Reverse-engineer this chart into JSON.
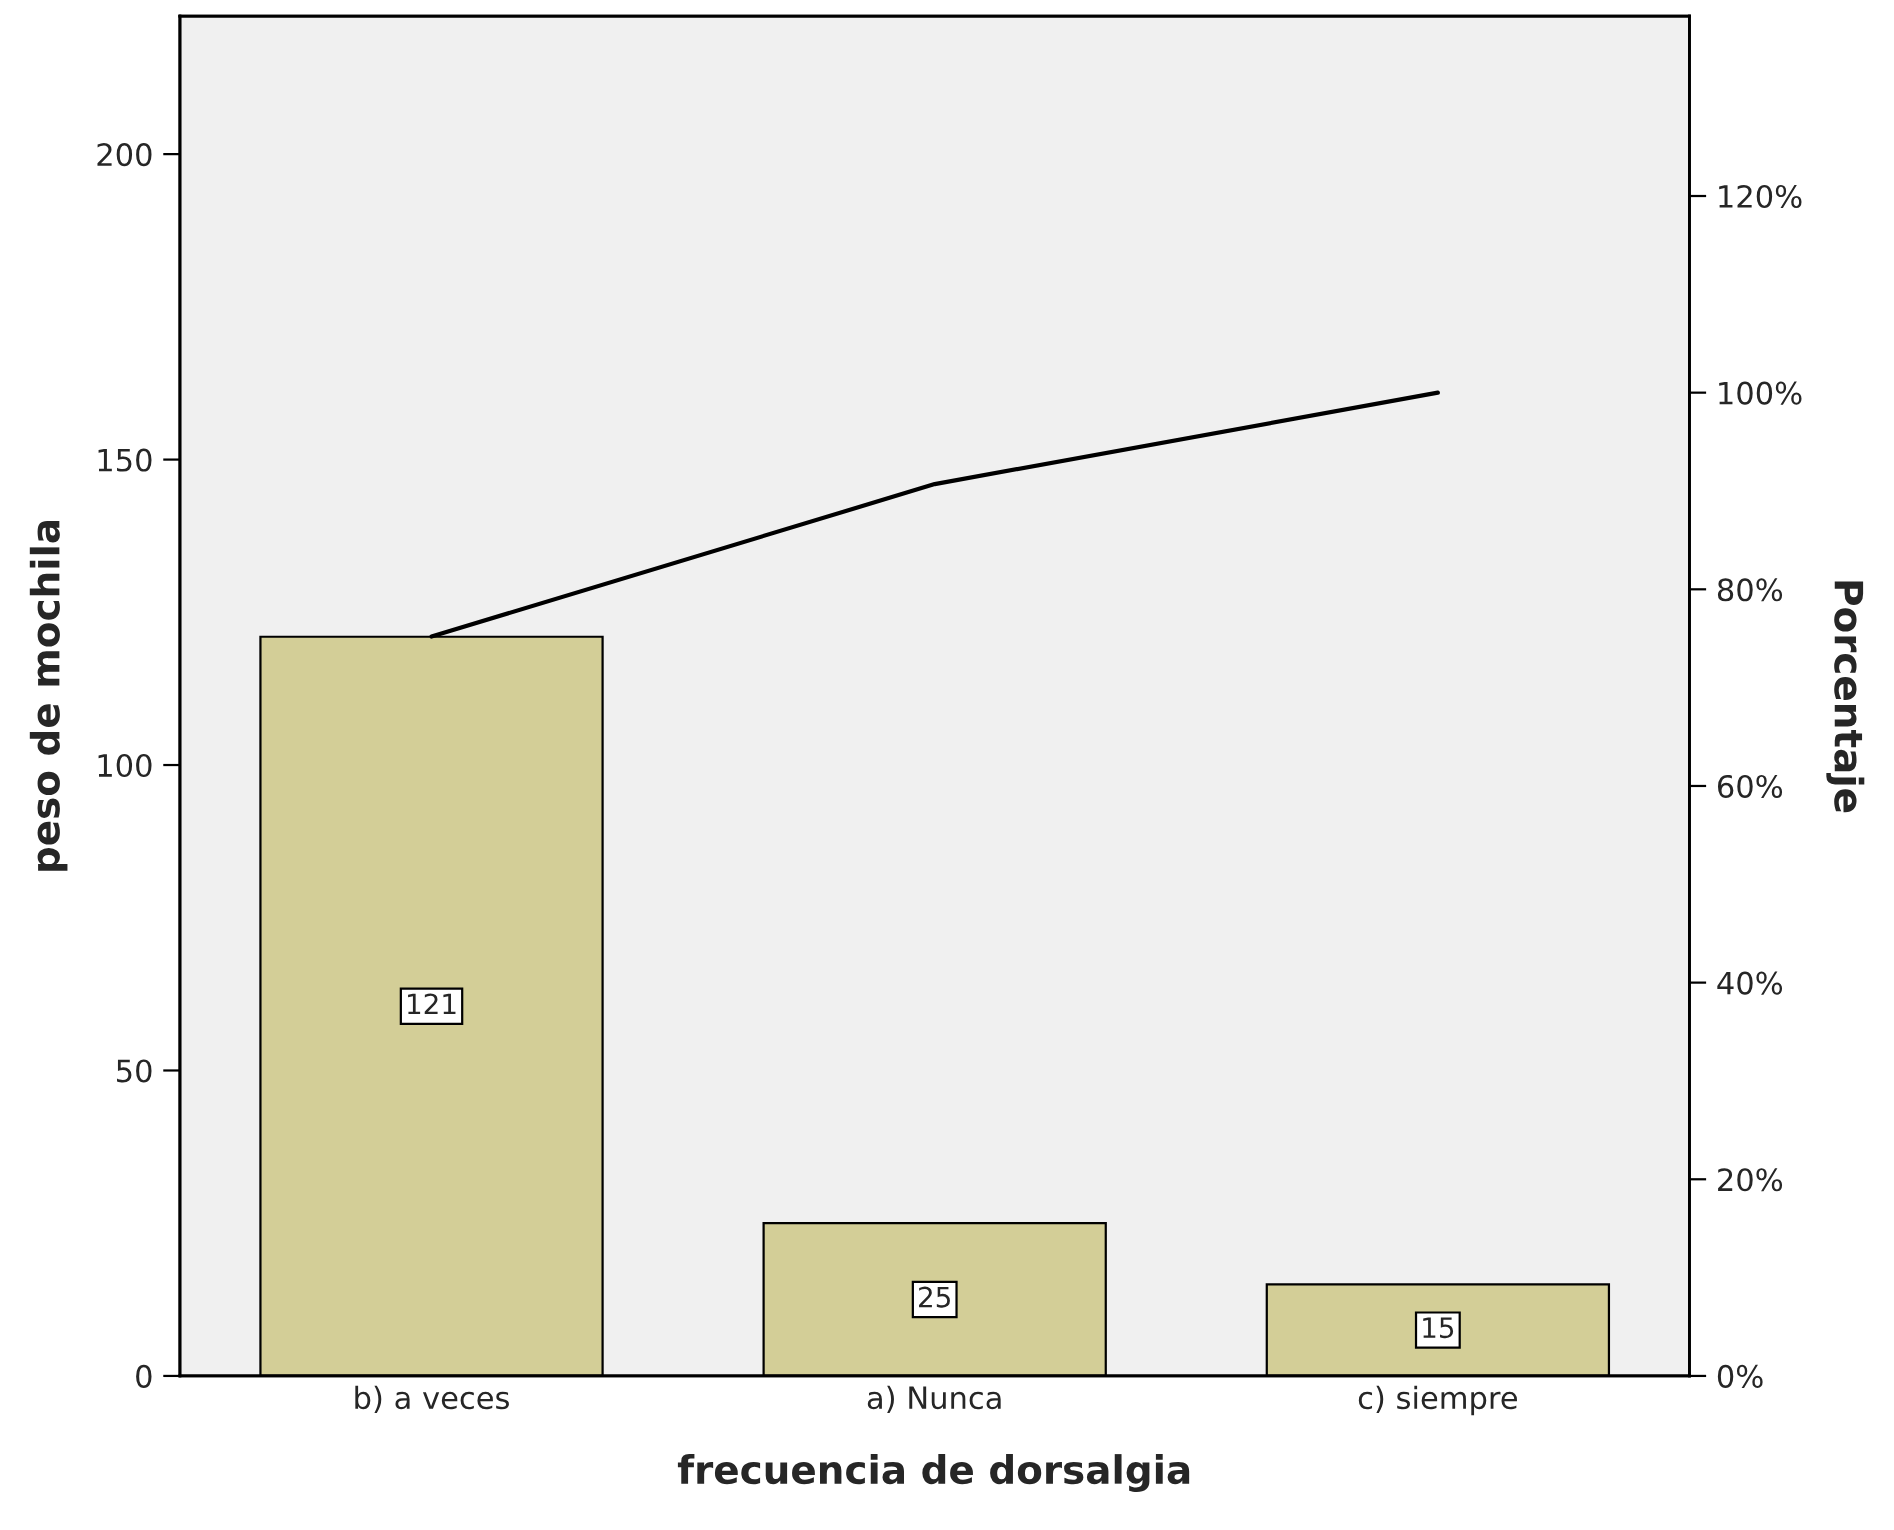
{
  "chart_data": {
    "type": "bar",
    "xlabel": "frecuencia de dorsalgia",
    "ylabel": "peso de mochila",
    "y2label": "Porcentaje",
    "categories": [
      "b) a veces",
      "a) Nunca",
      "c) siempre"
    ],
    "series": [
      {
        "color": "#d3ce97",
        "values": [
          121,
          25,
          15
        ],
        "value_labels": [
          "121",
          "25",
          "15"
        ]
      },
      {
        "type": "line",
        "axis": "y2",
        "color": "#000000",
        "values": [
          75.2,
          90.7,
          100
        ]
      }
    ],
    "ylim": [
      0,
      222.6
    ],
    "yticks": [
      0,
      50,
      100,
      150,
      200
    ],
    "y2lim": [
      0,
      138.3
    ],
    "y2ticks": [
      {
        "value": 0,
        "label": "0%"
      },
      {
        "value": 20,
        "label": "20%"
      },
      {
        "value": 40,
        "label": "40%"
      },
      {
        "value": 60,
        "label": "60%"
      },
      {
        "value": 80,
        "label": "80%"
      },
      {
        "value": 100,
        "label": "100%"
      },
      {
        "value": 120,
        "label": "120%"
      }
    ],
    "grid": false,
    "legend": false
  }
}
